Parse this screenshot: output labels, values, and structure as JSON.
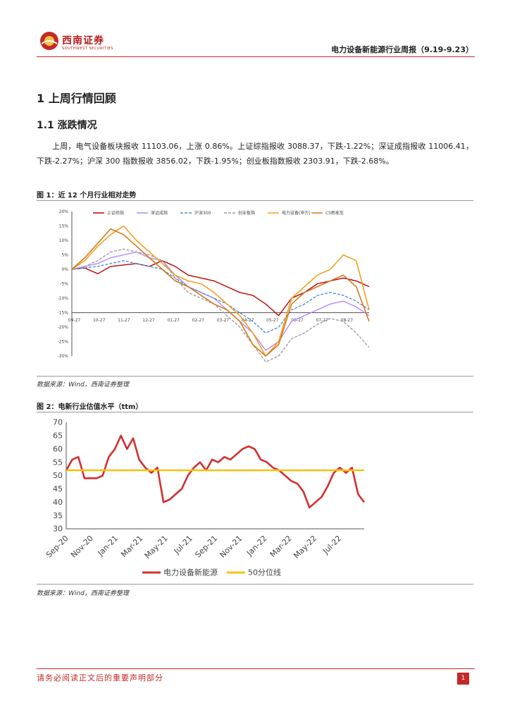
{
  "header": {
    "logo_name": "西南证券",
    "logo_sub": "SOUTHWEST SECURITIES",
    "report_title": "电力设备新能源行业周报（9.19-9.23）"
  },
  "section": {
    "h1": "1 上周行情回顾",
    "h2": "1.1 涨跌情况",
    "paragraph": "上周，电气设备板块报收 11103.06，上涨 0.86%。上证综指报收 3088.37，下跌-1.22%；深证成指报收 11006.41，下跌-2.27%；沪深 300 指数报收 3856.02，下跌-1.95%；创业板指数报收 2303.91，下跌-2.68%。"
  },
  "figure1": {
    "title": "图 1：近 12 个月行业相对走势",
    "source": "数据来源：Wind，西南证券整理"
  },
  "figure2": {
    "title": "图 2：电新行业估值水平（ttm）",
    "source": "数据来源：Wind，西南证券整理"
  },
  "footer": {
    "note": "请务必阅读正文后的重要声明部分",
    "page": "1"
  },
  "chart_data": [
    {
      "type": "line",
      "ylim": [
        -30,
        20
      ],
      "yticks": [
        "20%",
        "15%",
        "10%",
        "5%",
        "0%",
        "-5%",
        "-10%",
        "-15%",
        "-20%",
        "-25%",
        "-30%"
      ],
      "ytick_values": [
        20,
        15,
        10,
        5,
        0,
        -5,
        -10,
        -15,
        -20,
        -25,
        -30
      ],
      "x_ticks": [
        "09-27",
        "10-27",
        "11-27",
        "12-27",
        "01-27",
        "02-27",
        "03-27",
        "04-27",
        "05-27",
        "06-27",
        "07-27",
        "08-27"
      ],
      "legend_position": "top",
      "grid": false,
      "series": [
        {
          "name": "上证综指",
          "color": "#c00000",
          "dashed": false,
          "values": [
            0,
            0.5,
            -1.5,
            1,
            1.5,
            2,
            1,
            3,
            1,
            -2,
            -3,
            -4,
            -6,
            -8,
            -9,
            -12,
            -16,
            -10,
            -8,
            -5,
            -4,
            -3,
            -4,
            -6
          ]
        },
        {
          "name": "深证成指",
          "color": "#b388ff",
          "dashed": false,
          "values": [
            0,
            1,
            2,
            4,
            5,
            6,
            4,
            3,
            -2,
            -6,
            -8,
            -10,
            -14,
            -18,
            -22,
            -28,
            -25,
            -18,
            -16,
            -14,
            -12,
            -11,
            -13,
            -16
          ]
        },
        {
          "name": "沪深300",
          "color": "#4a90d9",
          "dashed": true,
          "values": [
            0,
            0.5,
            1,
            2,
            3,
            2,
            1,
            0,
            -3,
            -6,
            -8,
            -10,
            -12,
            -15,
            -18,
            -22,
            -20,
            -14,
            -12,
            -9,
            -8,
            -9,
            -11,
            -14
          ]
        },
        {
          "name": "创业板指",
          "color": "#9e9e9e",
          "dashed": true,
          "values": [
            0,
            1,
            3,
            6,
            7,
            6,
            5,
            3,
            -3,
            -8,
            -10,
            -12,
            -16,
            -20,
            -26,
            -32,
            -30,
            -24,
            -22,
            -19,
            -17,
            -18,
            -22,
            -27
          ]
        },
        {
          "name": "电力设备(申万)",
          "color": "#f0a020",
          "dashed": false,
          "values": [
            0,
            3,
            8,
            12,
            15,
            10,
            6,
            2,
            -2,
            -4,
            -5,
            -8,
            -12,
            -16,
            -22,
            -30,
            -25,
            -10,
            -6,
            -2,
            0,
            5,
            3,
            -14
          ]
        },
        {
          "name": "CS新能车",
          "color": "#d27a1c",
          "dashed": false,
          "values": [
            0,
            4,
            9,
            14,
            12,
            8,
            4,
            0,
            -4,
            -6,
            -9,
            -12,
            -14,
            -18,
            -26,
            -30,
            -26,
            -12,
            -8,
            -6,
            -4,
            -2,
            -6,
            -18
          ]
        }
      ]
    },
    {
      "type": "line",
      "ylim": [
        30,
        70
      ],
      "yticks": [
        "70",
        "65",
        "60",
        "55",
        "50",
        "45",
        "40",
        "35",
        "30"
      ],
      "ytick_values": [
        70,
        65,
        60,
        55,
        50,
        45,
        40,
        35,
        30
      ],
      "x_ticks": [
        "Sep-20",
        "Nov-20",
        "Jan-21",
        "Mar-21",
        "May-21",
        "Jul-21",
        "Sep-21",
        "Nov-21",
        "Jan-22",
        "Mar-22",
        "May-22",
        "Jul-22"
      ],
      "legend_position": "bottom",
      "grid": false,
      "series": [
        {
          "name": "电力设备新能源",
          "color": "#d32f2f",
          "values": [
            52,
            56,
            57,
            49,
            49,
            49,
            50,
            57,
            60,
            65,
            60,
            64,
            56,
            53,
            51,
            53,
            40,
            41,
            43,
            45,
            50,
            53,
            55,
            52,
            56,
            55,
            57,
            56,
            58,
            60,
            61,
            60,
            56,
            55,
            53,
            52,
            50,
            48,
            47,
            44,
            38,
            40,
            42,
            46,
            51,
            53,
            51,
            53,
            43,
            40
          ]
        },
        {
          "name": "50分位线",
          "color": "#f4c20d",
          "values": [
            52,
            52,
            52,
            52,
            52,
            52,
            52,
            52,
            52,
            52,
            52,
            52,
            52,
            52,
            52,
            52,
            52,
            52,
            52,
            52,
            52,
            52,
            52,
            52,
            52,
            52,
            52,
            52,
            52,
            52,
            52,
            52,
            52,
            52,
            52,
            52,
            52,
            52,
            52,
            52,
            52,
            52,
            52,
            52,
            52,
            52,
            52,
            52,
            52,
            52
          ]
        }
      ]
    }
  ]
}
